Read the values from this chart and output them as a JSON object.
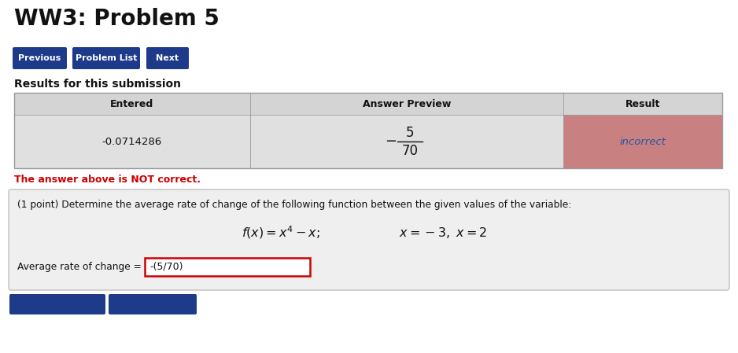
{
  "title": "WW3: Problem 5",
  "buttons": [
    "Previous",
    "Problem List",
    "Next"
  ],
  "button_color": "#1e3a8a",
  "button_text_color": "#ffffff",
  "results_label": "Results for this submission",
  "table_headers": [
    "Entered",
    "Answer Preview",
    "Result"
  ],
  "table_row_entered": "-0.0714286",
  "table_row_preview_num": "5",
  "table_row_preview_den": "70",
  "table_row_result": "incorrect",
  "result_bg_color": "#c98080",
  "result_text_color": "#2255aa",
  "header_bg_color": "#d4d4d4",
  "row_bg_color": "#e0e0e0",
  "not_correct_text": "The answer above is NOT correct.",
  "not_correct_color": "#cc0000",
  "problem_box_text": "(1 point) Determine the average rate of change of the following function between the given values of the variable:",
  "problem_box_bg": "#efefef",
  "problem_box_border": "#c0c0c0",
  "avg_rate_label": "Average rate of change =",
  "input_value": "-(5/70)",
  "input_border_color": "#cc0000",
  "background_color": "#ffffff",
  "table_border_color": "#999999",
  "fig_w": 9.38,
  "fig_h": 4.49,
  "dpi": 100
}
